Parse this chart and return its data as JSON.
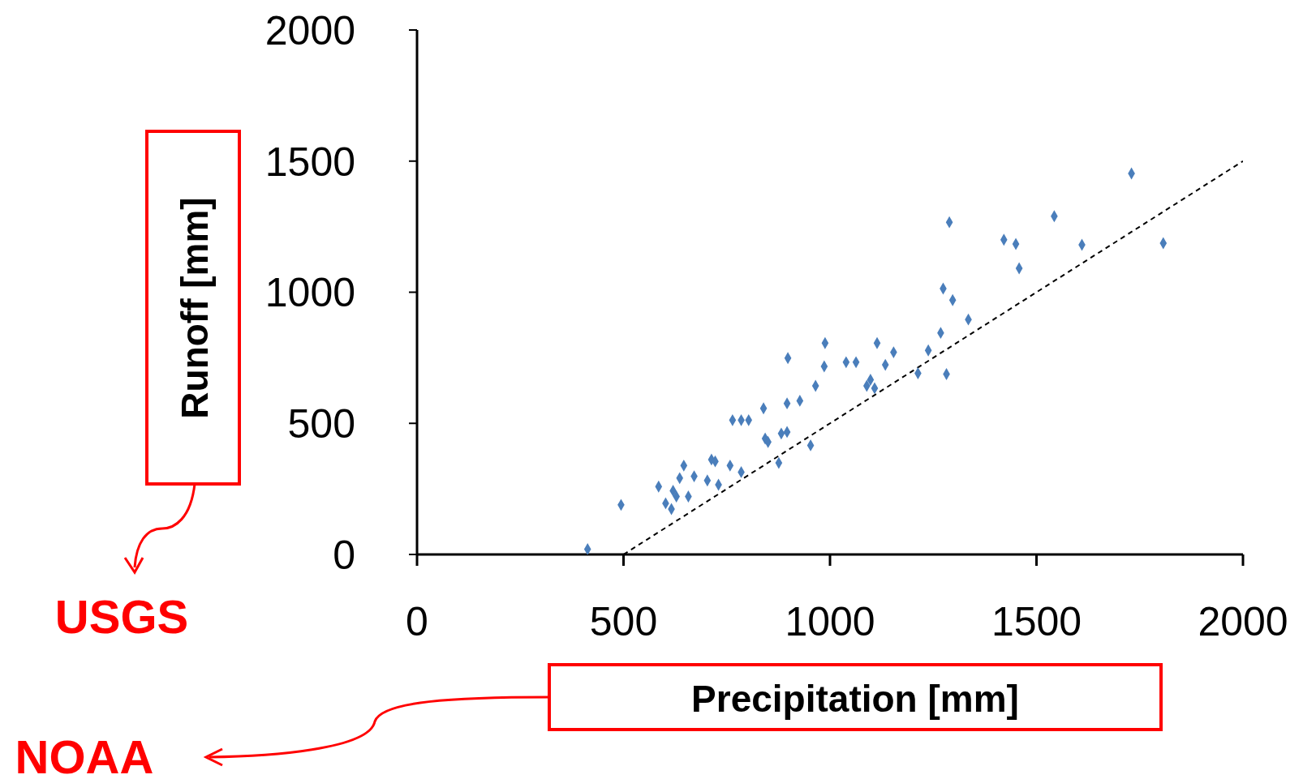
{
  "chart_data": {
    "type": "scatter",
    "xlabel": "Precipitation  [mm]",
    "ylabel": "Runoff  [mm]",
    "xlim": [
      0,
      2000
    ],
    "ylim": [
      0,
      2000
    ],
    "xticks": [
      0,
      500,
      1000,
      1500,
      2000
    ],
    "yticks": [
      0,
      500,
      1000,
      1500,
      2000
    ],
    "marker": "diamond",
    "annotations": [
      "USGS",
      "NOAA"
    ],
    "series": [
      {
        "color": "#4a7ebb",
        "x": [
          413,
          494,
          585,
          602,
          616,
          620,
          628,
          636,
          646,
          657,
          671,
          703,
          713,
          722,
          730,
          758,
          764,
          785,
          785,
          803,
          839,
          843,
          850,
          876,
          882,
          896,
          898,
          896,
          927,
          953,
          965,
          986,
          988,
          1039,
          1063,
          1089,
          1098,
          1108,
          1114,
          1134,
          1154,
          1213,
          1238,
          1268,
          1274,
          1282,
          1289,
          1297,
          1335,
          1421,
          1450,
          1458,
          1543,
          1610,
          1730,
          1807
        ],
        "values": [
          20,
          189,
          259,
          195,
          173,
          243,
          221,
          291,
          339,
          221,
          298,
          282,
          362,
          355,
          266,
          339,
          512,
          314,
          512,
          512,
          557,
          442,
          429,
          349,
          461,
          467,
          749,
          576,
          586,
          416,
          643,
          717,
          806,
          733,
          733,
          643,
          666,
          634,
          806,
          723,
          771,
          691,
          778,
          845,
          1014,
          688,
          1267,
          970,
          896,
          1200,
          1184,
          1091,
          1290,
          1181,
          1453,
          1187
        ]
      },
      {
        "type": "line",
        "color": "#000000",
        "line_style": "dashed",
        "marker": "none",
        "x": [
          500,
          2000
        ],
        "values": [
          0,
          1500
        ]
      }
    ]
  }
}
